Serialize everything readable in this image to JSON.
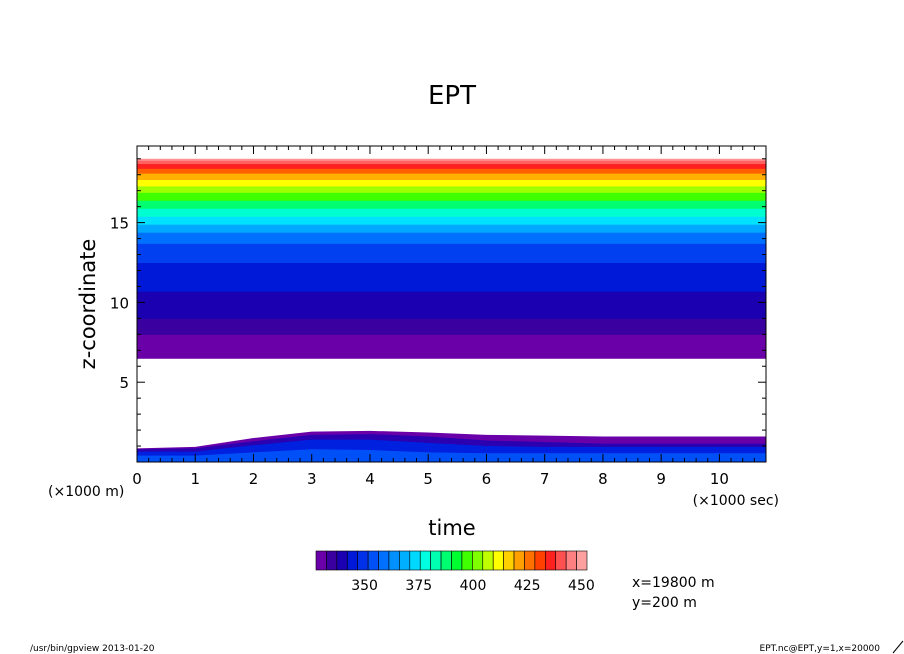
{
  "chart_data": {
    "type": "heatmap",
    "title": "EPT",
    "xlabel": "time",
    "ylabel": "z-coordinate",
    "x_unit_label": "(×1000 sec)",
    "y_unit_label": "(×1000 m)",
    "xlim": [
      0,
      10.8
    ],
    "ylim": [
      0,
      19.8
    ],
    "x_ticks": [
      0,
      1,
      2,
      3,
      4,
      5,
      6,
      7,
      8,
      9,
      10
    ],
    "y_ticks": [
      5,
      10,
      15
    ],
    "colorbar": {
      "levels": [
        300,
        310,
        320,
        330,
        340,
        350,
        360,
        370,
        380,
        390,
        400,
        410,
        420,
        430,
        440,
        450
      ],
      "tick_labels": [
        "350",
        "375",
        "400",
        "425",
        "450"
      ],
      "tick_values": [
        350,
        375,
        400,
        425,
        450
      ],
      "min": 330,
      "max": 450,
      "step": 5
    },
    "upper_layers": [
      {
        "z_bottom": 6.5,
        "z_top": 7.5,
        "color": "#6a00a8"
      },
      {
        "z_bottom": 7.5,
        "z_top": 8.0,
        "color": "#6a00a8"
      },
      {
        "z_bottom": 8.0,
        "z_top": 9.0,
        "color": "#3a00a0"
      },
      {
        "z_bottom": 9.0,
        "z_top": 10.7,
        "color": "#1a00b0"
      },
      {
        "z_bottom": 10.7,
        "z_top": 12.5,
        "color": "#0018d8"
      },
      {
        "z_bottom": 12.5,
        "z_top": 13.7,
        "color": "#0040f0"
      },
      {
        "z_bottom": 13.7,
        "z_top": 14.4,
        "color": "#0070ff"
      },
      {
        "z_bottom": 14.4,
        "z_top": 14.9,
        "color": "#00a8ff"
      },
      {
        "z_bottom": 14.9,
        "z_top": 15.4,
        "color": "#00e0ff"
      },
      {
        "z_bottom": 15.4,
        "z_top": 15.9,
        "color": "#00ffd0"
      },
      {
        "z_bottom": 15.9,
        "z_top": 16.4,
        "color": "#00ff70"
      },
      {
        "z_bottom": 16.4,
        "z_top": 16.9,
        "color": "#40ff00"
      },
      {
        "z_bottom": 16.9,
        "z_top": 17.3,
        "color": "#a0ff00"
      },
      {
        "z_bottom": 17.3,
        "z_top": 17.7,
        "color": "#ffff00"
      },
      {
        "z_bottom": 17.7,
        "z_top": 18.1,
        "color": "#ffb000"
      },
      {
        "z_bottom": 18.1,
        "z_top": 18.4,
        "color": "#ff6000"
      },
      {
        "z_bottom": 18.4,
        "z_top": 18.7,
        "color": "#ff2020"
      },
      {
        "z_bottom": 18.7,
        "z_top": 18.9,
        "color": "#ff6060"
      },
      {
        "z_bottom": 18.9,
        "z_top": 19.0,
        "color": "#ff9090"
      }
    ],
    "lower_layers": [
      {
        "color": "#6a00a8",
        "profile": [
          [
            0,
            0.85
          ],
          [
            1,
            0.95
          ],
          [
            2,
            1.5
          ],
          [
            3,
            1.9
          ],
          [
            4,
            1.95
          ],
          [
            5,
            1.85
          ],
          [
            6,
            1.7
          ],
          [
            7,
            1.65
          ],
          [
            8,
            1.6
          ],
          [
            9,
            1.6
          ],
          [
            10.8,
            1.6
          ]
        ]
      },
      {
        "color": "#2a00b0",
        "profile": [
          [
            0,
            0.8
          ],
          [
            1,
            0.85
          ],
          [
            2,
            1.3
          ],
          [
            3,
            1.7
          ],
          [
            4,
            1.75
          ],
          [
            5,
            1.6
          ],
          [
            6,
            1.35
          ],
          [
            7,
            1.25
          ],
          [
            8,
            1.15
          ],
          [
            9,
            1.15
          ],
          [
            10.8,
            1.15
          ]
        ]
      },
      {
        "color": "#0020e0",
        "profile": [
          [
            0,
            0.65
          ],
          [
            1,
            0.65
          ],
          [
            2,
            1.05
          ],
          [
            3,
            1.4
          ],
          [
            4,
            1.4
          ],
          [
            5,
            1.2
          ],
          [
            6,
            1.0
          ],
          [
            7,
            0.95
          ],
          [
            8,
            0.95
          ],
          [
            9,
            0.95
          ],
          [
            10.8,
            0.95
          ]
        ]
      },
      {
        "color": "#0050f8",
        "profile": [
          [
            0,
            0.4
          ],
          [
            1,
            0.4
          ],
          [
            2,
            0.6
          ],
          [
            3,
            0.8
          ],
          [
            4,
            0.75
          ],
          [
            5,
            0.6
          ],
          [
            6,
            0.55
          ],
          [
            7,
            0.55
          ],
          [
            8,
            0.55
          ],
          [
            9,
            0.55
          ],
          [
            10.8,
            0.55
          ]
        ]
      }
    ],
    "annotations": [
      "x=19800 m",
      "y=200 m"
    ]
  },
  "footer": {
    "left": "/usr/bin/gpview  2013-01-20",
    "right": "EPT.nc@EPT,y=1,x=20000"
  },
  "colorbar_swatches": [
    "#6a00a8",
    "#3a00a0",
    "#1a00b0",
    "#0018d8",
    "#0030e8",
    "#0050f8",
    "#0070ff",
    "#0090ff",
    "#00b0ff",
    "#00d8ff",
    "#00ffe0",
    "#00ffb0",
    "#00ff70",
    "#00ff30",
    "#40ff00",
    "#80ff00",
    "#c0ff00",
    "#ffff00",
    "#ffd000",
    "#ffa000",
    "#ff7000",
    "#ff4000",
    "#ff2020",
    "#ff5050",
    "#ff8080",
    "#ffa0a0"
  ]
}
